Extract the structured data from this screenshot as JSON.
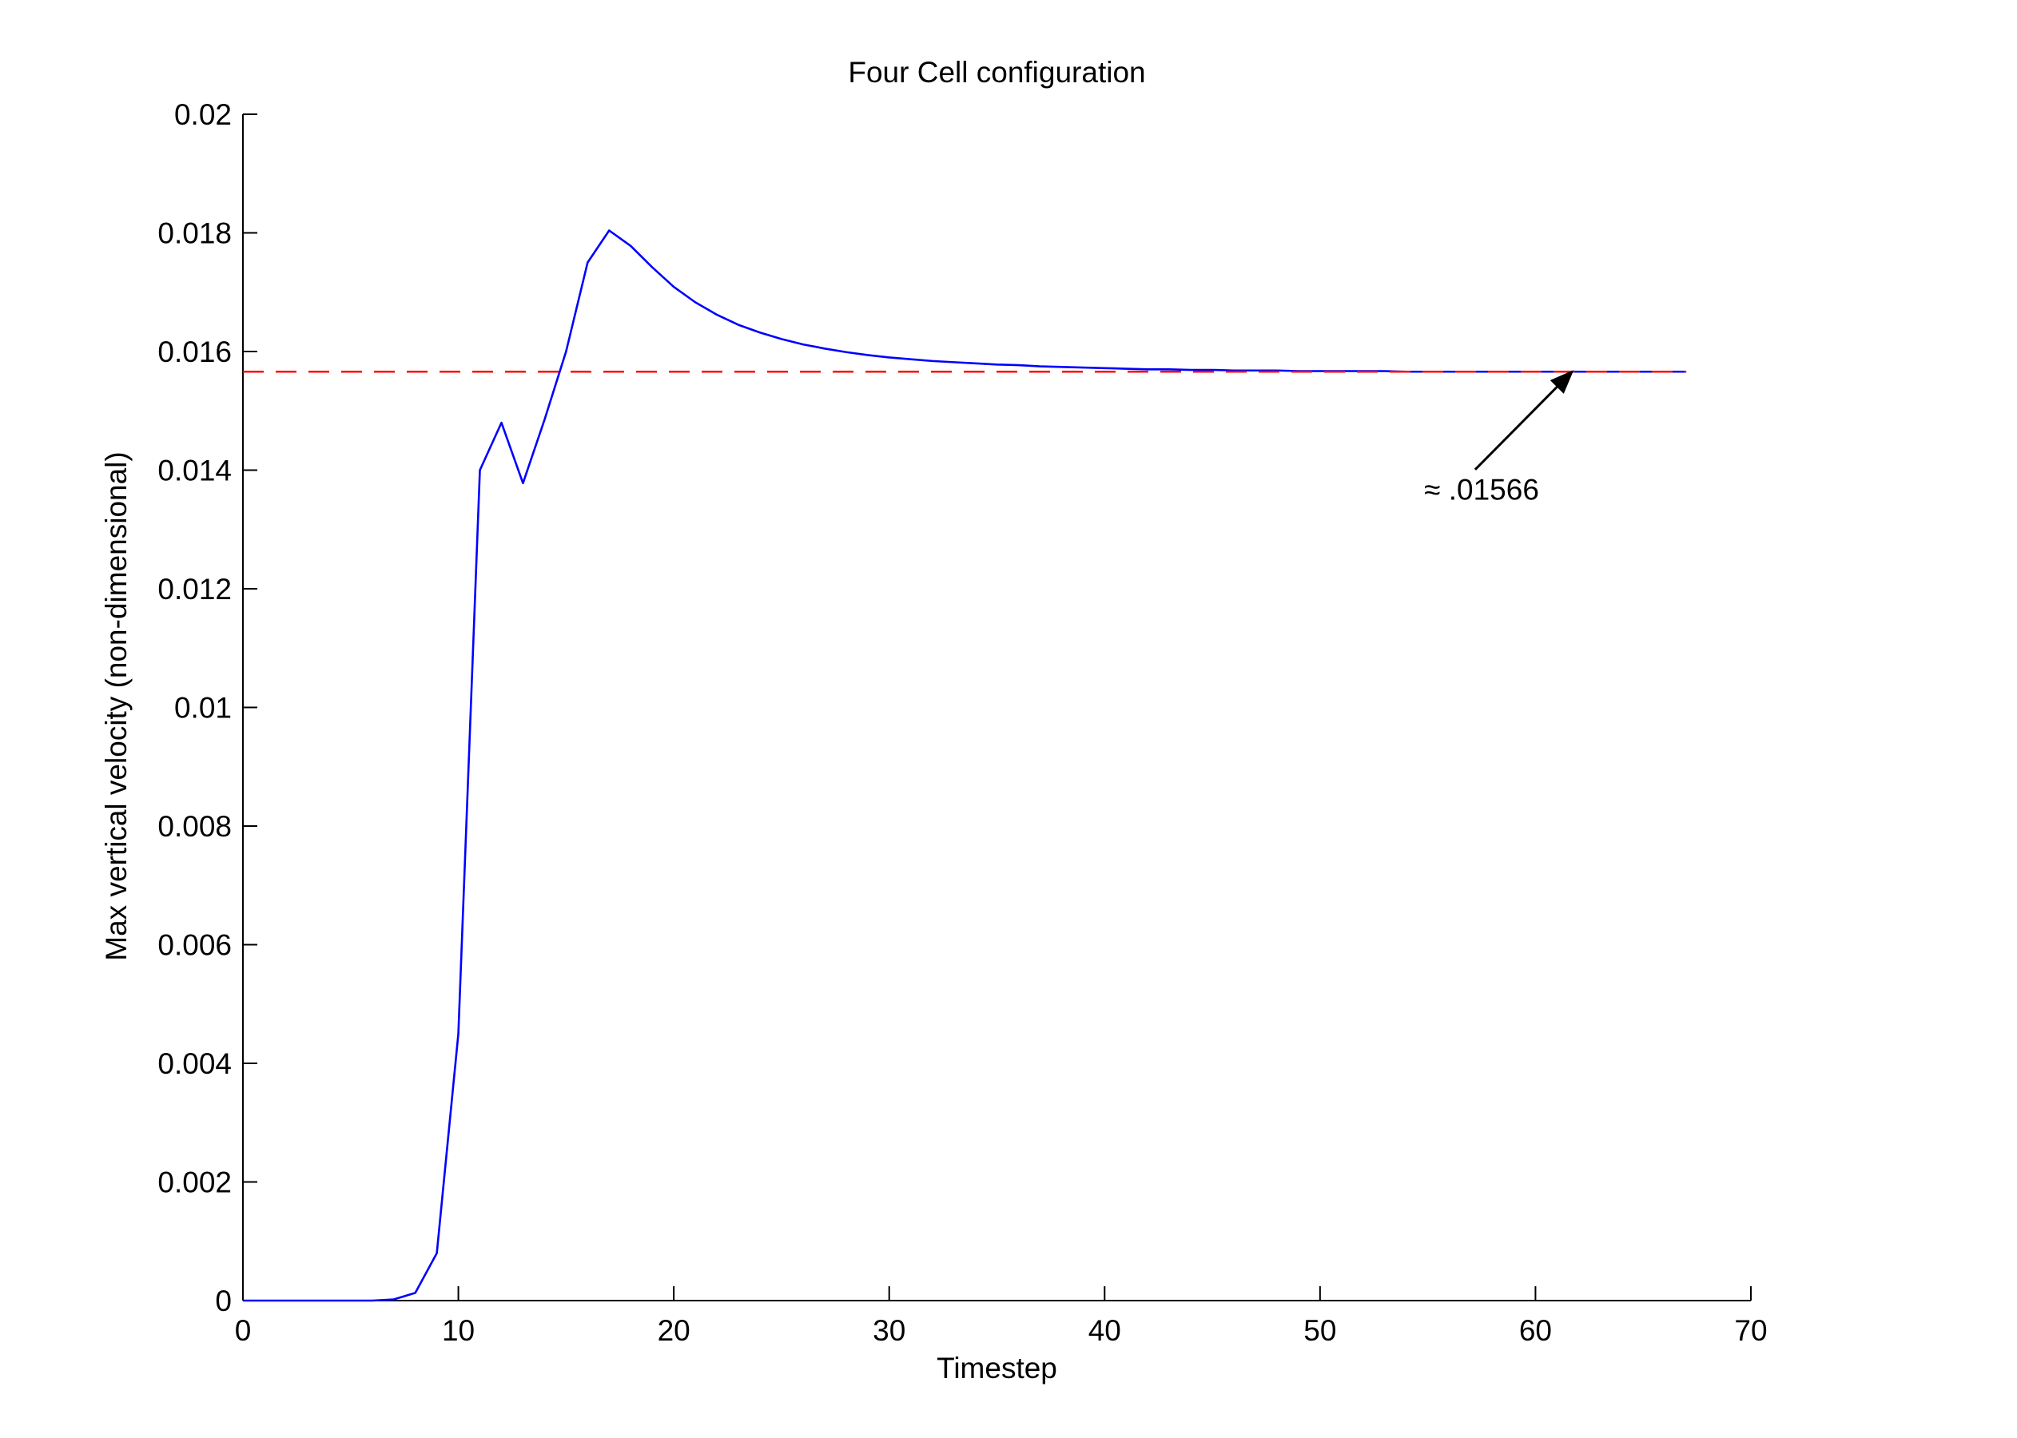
{
  "chart_data": {
    "type": "line",
    "title": "Four Cell configuration",
    "xlabel": "Timestep",
    "ylabel": "Max vertical velocity (non-dimensional)",
    "xlim": [
      0,
      70
    ],
    "ylim": [
      0,
      0.02
    ],
    "xticks": [
      0,
      10,
      20,
      30,
      40,
      50,
      60,
      70
    ],
    "xtick_labels": [
      "0",
      "10",
      "20",
      "30",
      "40",
      "50",
      "60",
      "70"
    ],
    "yticks": [
      0,
      0.002,
      0.004,
      0.006,
      0.008,
      0.01,
      0.012,
      0.014,
      0.016,
      0.018,
      0.02
    ],
    "ytick_labels": [
      "0",
      "0.002",
      "0.004",
      "0.006",
      "0.008",
      "0.01",
      "0.012",
      "0.014",
      "0.016",
      "0.018",
      "0.02"
    ],
    "grid": false,
    "series": [
      {
        "color": "#0000ff",
        "style": "solid",
        "x": [
          0,
          1,
          2,
          3,
          4,
          5,
          6,
          7,
          8,
          9,
          10,
          11,
          12,
          13,
          14,
          15,
          16,
          17,
          18,
          19,
          20,
          21,
          22,
          23,
          24,
          25,
          26,
          27,
          28,
          29,
          30,
          31,
          32,
          33,
          34,
          35,
          36,
          37,
          38,
          39,
          40,
          41,
          42,
          43,
          44,
          45,
          46,
          47,
          48,
          49,
          50,
          51,
          52,
          53,
          54,
          55,
          56,
          57,
          58,
          59,
          60,
          61,
          62,
          63,
          64,
          65,
          66,
          67
        ],
        "y": [
          0,
          0,
          0,
          0,
          0,
          0,
          0,
          2e-05,
          0.00013,
          0.0008,
          0.0045,
          0.014,
          0.0148,
          0.01378,
          0.01485,
          0.016,
          0.0175,
          0.01804,
          0.01778,
          0.01742,
          0.01709,
          0.01683,
          0.01662,
          0.01645,
          0.01632,
          0.01621,
          0.01612,
          0.01605,
          0.01599,
          0.01594,
          0.0159,
          0.01587,
          0.01584,
          0.01582,
          0.0158,
          0.01578,
          0.01577,
          0.01575,
          0.01574,
          0.01573,
          0.01572,
          0.01571,
          0.0157,
          0.0157,
          0.01569,
          0.01569,
          0.01568,
          0.01568,
          0.01568,
          0.01567,
          0.01567,
          0.01567,
          0.01567,
          0.01567,
          0.01566,
          0.01566,
          0.01566,
          0.01566,
          0.01566,
          0.01566,
          0.01566,
          0.01566,
          0.01566,
          0.01566,
          0.01566,
          0.01566,
          0.01566,
          0.01566
        ]
      },
      {
        "color": "#ff0000",
        "style": "dashed",
        "x": [
          0,
          67
        ],
        "y": [
          0.01566,
          0.01566
        ]
      }
    ],
    "annotations": [
      {
        "text": "≈ .01566",
        "x": 57.5,
        "y": 0.0135,
        "arrow_from": [
          57.2,
          0.01401
        ],
        "arrow_to": [
          61.7,
          0.01566
        ]
      }
    ]
  }
}
